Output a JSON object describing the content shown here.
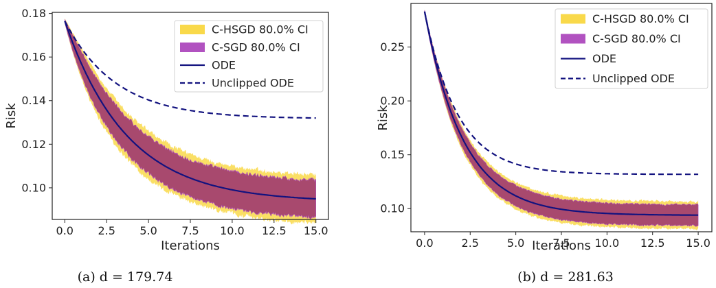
{
  "chart_data": [
    {
      "type": "line",
      "caption": "(a) d = 179.74",
      "xlabel": "Iterations",
      "ylabel": "Risk",
      "xlim": [
        -0.75,
        15.75
      ],
      "ylim": [
        0.0855,
        0.1805
      ],
      "xticks": [
        "0.0",
        "2.5",
        "5.0",
        "7.5",
        "10.0",
        "12.5",
        "15.0"
      ],
      "yticks": [
        "0.10",
        "0.12",
        "0.14",
        "0.16",
        "0.18"
      ],
      "grid": false,
      "legend": "top-right",
      "legend_entries": [
        "C-HSGD 80.0% CI",
        "C-SGD 80.0% CI",
        "ODE",
        "Unclipped ODE"
      ],
      "colors": {
        "hsgd": "#f9d94a",
        "sgd": "#b152c0",
        "overlap": "#a3406f",
        "ode": "#12127f"
      },
      "ode": {
        "y0": 0.1765,
        "yinf": 0.0935,
        "k": 0.27
      },
      "unclipped": {
        "y0": 0.1765,
        "yinf": 0.1317,
        "k": 0.33
      },
      "sgd_band": {
        "w0": 0.0008,
        "w1": 0.0078,
        "noise": 0.0013
      },
      "hsgd_band": {
        "w0": 0.0012,
        "w1": 0.0098,
        "noise": 0.0016
      },
      "x": [
        0,
        2.5,
        5,
        7.5,
        10,
        12.5,
        15
      ],
      "series": [
        {
          "name": "ODE",
          "values": [
            0.1765,
            0.1387,
            0.1183,
            0.1073,
            0.1014,
            0.0982,
            0.0965
          ]
        },
        {
          "name": "Unclipped ODE",
          "values": [
            0.1765,
            0.1486,
            0.1386,
            0.1347,
            0.133,
            0.1325,
            0.1323
          ]
        }
      ]
    },
    {
      "type": "line",
      "caption": "(b) d = 281.63",
      "xlabel": "Iterations",
      "ylabel": "Risk",
      "xlim": [
        -0.75,
        15.75
      ],
      "ylim": [
        0.0785,
        0.2905
      ],
      "xticks": [
        "0.0",
        "2.5",
        "5.0",
        "7.5",
        "10.0",
        "12.5",
        "15.0"
      ],
      "yticks": [
        "0.10",
        "0.15",
        "0.20",
        "0.25"
      ],
      "grid": false,
      "legend": "top-right",
      "legend_entries": [
        "C-HSGD 80.0% CI",
        "C-SGD 80.0% CI",
        "ODE",
        "Unclipped ODE"
      ],
      "colors": {
        "hsgd": "#f9d94a",
        "sgd": "#b152c0",
        "overlap": "#a3406f",
        "ode": "#12127f"
      },
      "ode": {
        "y0": 0.283,
        "yinf": 0.0938,
        "k": 0.47
      },
      "unclipped": {
        "y0": 0.283,
        "yinf": 0.1318,
        "k": 0.55
      },
      "sgd_band": {
        "w0": 0.0012,
        "w1": 0.0085,
        "noise": 0.0014
      },
      "hsgd_band": {
        "w0": 0.0018,
        "w1": 0.0108,
        "noise": 0.0017
      },
      "x": [
        0,
        2.5,
        5,
        7.5,
        10,
        12.5,
        15
      ],
      "series": [
        {
          "name": "ODE",
          "values": [
            0.283,
            0.153,
            0.1111,
            0.0994,
            0.0956,
            0.0943,
            0.0939
          ]
        },
        {
          "name": "Unclipped ODE",
          "values": [
            0.283,
            0.1699,
            0.1421,
            0.1346,
            0.1326,
            0.132,
            0.1318
          ]
        }
      ]
    }
  ]
}
